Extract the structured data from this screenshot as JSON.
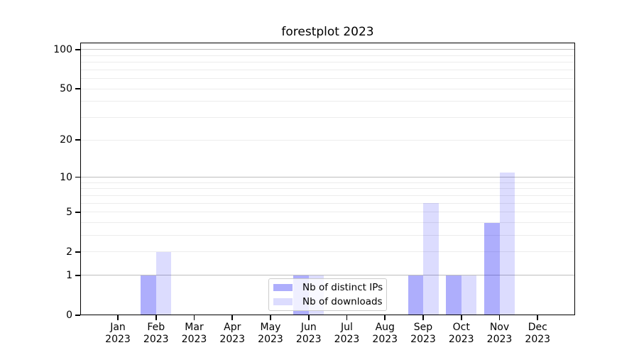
{
  "chart_data": {
    "type": "bar",
    "title": "forestplot 2023",
    "categories": [
      "Jan",
      "Feb",
      "Mar",
      "Apr",
      "May",
      "Jun",
      "Jul",
      "Aug",
      "Sep",
      "Oct",
      "Nov",
      "Dec"
    ],
    "category_year": "2023",
    "series": [
      {
        "name": "Nb of distinct IPs",
        "color": "rgba(10,10,245,0.33)",
        "values": [
          0,
          1,
          0,
          0,
          0,
          1,
          0,
          0,
          1,
          1,
          4,
          0
        ]
      },
      {
        "name": "Nb of downloads",
        "color": "rgba(10,10,245,0.14)",
        "values": [
          0,
          2,
          0,
          0,
          0,
          1,
          0,
          0,
          6,
          1,
          11,
          0
        ]
      }
    ],
    "xlabel": "",
    "ylabel": "",
    "yscale": "log1p",
    "ylim": [
      0,
      113
    ],
    "yticks": [
      0,
      1,
      2,
      5,
      10,
      20,
      50,
      100
    ],
    "grid_major": [
      1,
      10,
      100
    ],
    "grid_minor": [
      2,
      3,
      4,
      5,
      6,
      7,
      8,
      9,
      20,
      30,
      40,
      50,
      60,
      70,
      80,
      90
    ],
    "legend_position": "lower center",
    "grid": "on"
  },
  "style": {
    "grid_major_color": "#bdbdbd",
    "grid_minor_color": "#ececec",
    "spine_color": "#000000",
    "tick_color": "#000000",
    "text_color": "#000000",
    "legend_border_color": "#cccccc",
    "background_color": "#ffffff"
  }
}
